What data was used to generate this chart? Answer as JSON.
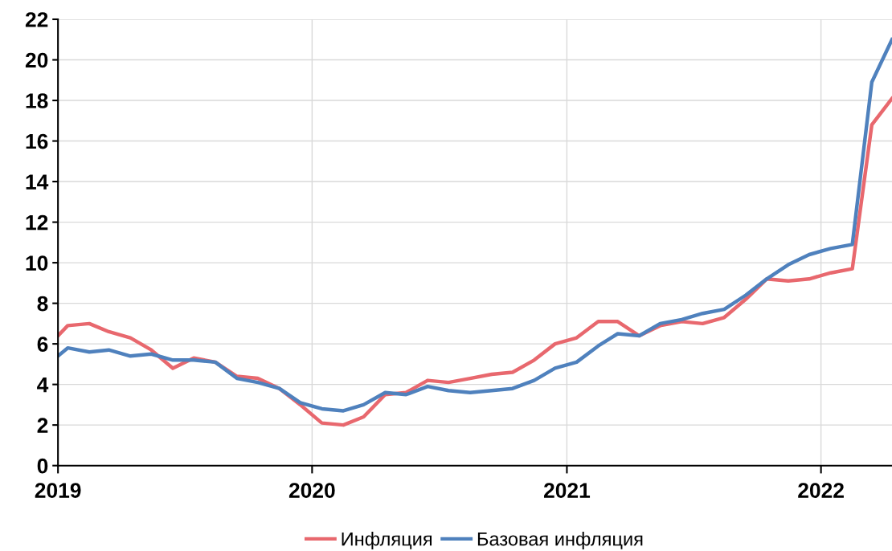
{
  "chart_data": {
    "type": "line",
    "x": [
      "2019-01-01",
      "2019-01-15",
      "2019-02-15",
      "2019-03-15",
      "2019-04-15",
      "2019-05-15",
      "2019-06-15",
      "2019-07-15",
      "2019-08-15",
      "2019-09-15",
      "2019-10-15",
      "2019-11-15",
      "2019-12-15",
      "2020-01-15",
      "2020-02-15",
      "2020-03-15",
      "2020-04-15",
      "2020-05-15",
      "2020-06-15",
      "2020-07-15",
      "2020-08-15",
      "2020-09-15",
      "2020-10-15",
      "2020-11-15",
      "2020-12-15",
      "2021-01-15",
      "2021-02-15",
      "2021-03-15",
      "2021-04-15",
      "2021-05-15",
      "2021-06-15",
      "2021-07-15",
      "2021-08-15",
      "2021-09-15",
      "2021-10-15",
      "2021-11-15",
      "2021-12-15",
      "2022-01-15",
      "2022-02-15",
      "2022-03-15",
      "2022-04-13"
    ],
    "series": [
      {
        "name": "Инфляция",
        "color": "#e8686e",
        "values": [
          6.4,
          6.9,
          7.0,
          6.6,
          6.3,
          5.7,
          4.8,
          5.3,
          5.1,
          4.4,
          4.3,
          3.8,
          3.0,
          2.1,
          2.0,
          2.4,
          3.5,
          3.6,
          4.2,
          4.1,
          4.3,
          4.5,
          4.6,
          5.2,
          6.0,
          6.3,
          7.1,
          7.1,
          6.4,
          6.9,
          7.1,
          7.0,
          7.3,
          8.2,
          9.2,
          9.1,
          9.2,
          9.5,
          9.7,
          16.8,
          18.1
        ]
      },
      {
        "name": "Базовая инфляция",
        "color": "#4f81bd",
        "values": [
          5.4,
          5.8,
          5.6,
          5.7,
          5.4,
          5.5,
          5.2,
          5.2,
          5.1,
          4.3,
          4.1,
          3.8,
          3.1,
          2.8,
          2.7,
          3.0,
          3.6,
          3.5,
          3.9,
          3.7,
          3.6,
          3.7,
          3.8,
          4.2,
          4.8,
          5.1,
          5.9,
          6.5,
          6.4,
          7.0,
          7.2,
          7.5,
          7.7,
          8.4,
          9.2,
          9.9,
          10.4,
          10.7,
          10.9,
          18.9,
          21.0
        ]
      }
    ],
    "xlim": [
      "2019-01-01",
      "2022-04-13"
    ],
    "xticks": [
      {
        "value": "2019-01-01",
        "label": "2019"
      },
      {
        "value": "2020-01-01",
        "label": "2020"
      },
      {
        "value": "2021-01-01",
        "label": "2021"
      },
      {
        "value": "2022-01-01",
        "label": "2022"
      }
    ],
    "ylim": [
      0,
      22
    ],
    "yticks": [
      0,
      2,
      4,
      6,
      8,
      10,
      12,
      14,
      16,
      18,
      20,
      22
    ],
    "grid": true,
    "legend": "bottom",
    "marker": "none",
    "line_style": "solid"
  }
}
